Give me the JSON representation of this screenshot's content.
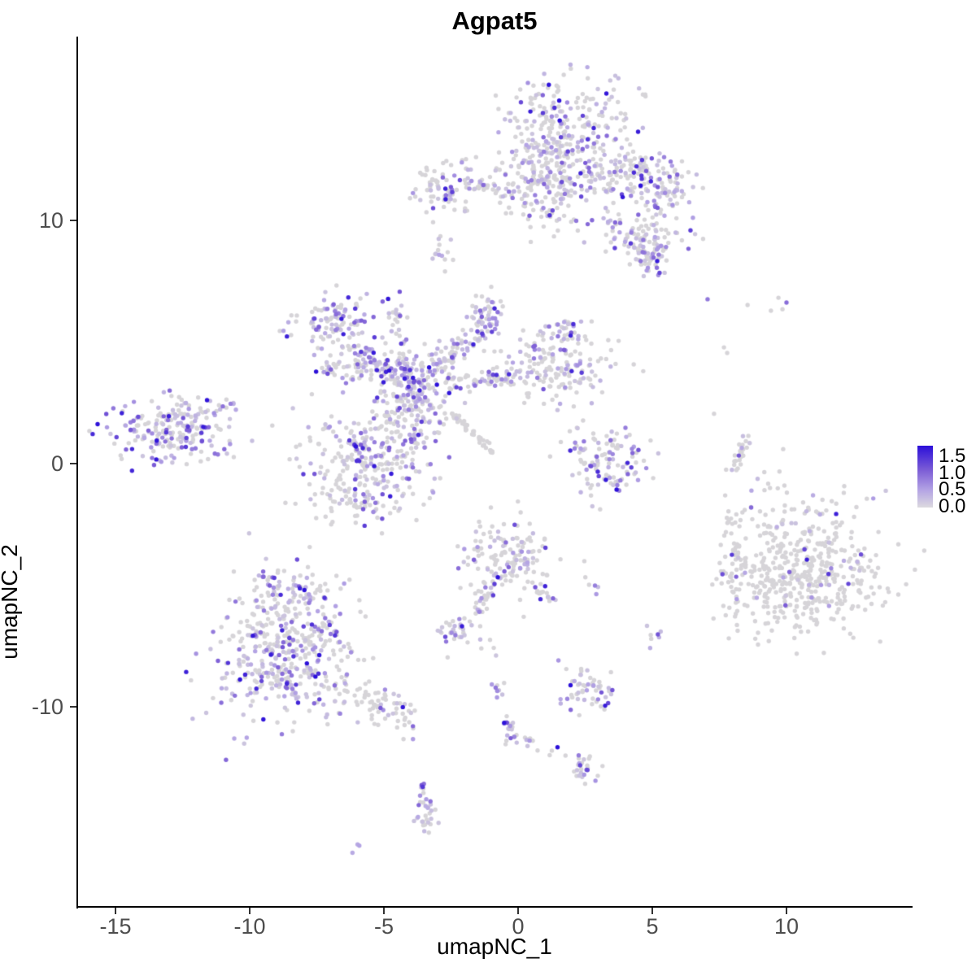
{
  "title": "Agpat5",
  "axes": {
    "x": {
      "label": "umapNC_1",
      "ticks": [
        -15,
        -10,
        -5,
        0,
        5,
        10
      ],
      "range": [
        -16.4,
        14.6
      ]
    },
    "y": {
      "label": "umapNC_2",
      "ticks": [
        10,
        0,
        -10
      ],
      "range": [
        -18.2,
        17.6
      ]
    }
  },
  "legend": {
    "labels": [
      "1.5",
      "1.0",
      "0.5",
      "0.0"
    ],
    "min": 0.0,
    "max": 1.5,
    "gradient_stops": [
      "#2b0fd9",
      "#7d5ed6",
      "#b4a4e4",
      "#dcdadf"
    ]
  },
  "colors": {
    "zero_expression": "#d6d4d8",
    "ramp": [
      [
        "0",
        "#d8d6da"
      ],
      [
        "0.35",
        "#b4a4e4"
      ],
      [
        "0.7",
        "#7d5ed6"
      ],
      [
        "1",
        "#2b0fd9"
      ]
    ],
    "axis": "#000000",
    "tick_text": "#4d4d4d"
  },
  "chart_data": {
    "type": "scatter",
    "title": "Agpat5",
    "xlabel": "umapNC_1",
    "ylabel": "umapNC_2",
    "xlim": [
      -16.4,
      14.6
    ],
    "ylim": [
      -18.2,
      17.6
    ],
    "grid": false,
    "legend_position": "right",
    "value_range": [
      0.0,
      1.5
    ],
    "point_radius_px": 2.7,
    "seed": 1337,
    "clusters": [
      {
        "name": "top-main",
        "kind": "blob",
        "cx": 1.91,
        "cy": 13.38,
        "sdx": 1.36,
        "sdy": 1.4,
        "n": 330,
        "frac": 0.35
      },
      {
        "name": "top-lower-left",
        "kind": "blob",
        "cx": 0.94,
        "cy": 11.71,
        "sdx": 0.67,
        "sdy": 1.07,
        "n": 140,
        "frac": 0.3
      },
      {
        "name": "top-right-arm",
        "kind": "strand",
        "x1": 2.97,
        "y1": 11.87,
        "x2": 5.85,
        "y2": 11.71,
        "sd": 0.5,
        "n": 120,
        "frac": 0.4
      },
      {
        "name": "top-right-hook",
        "kind": "blob",
        "cx": 5.39,
        "cy": 11.04,
        "sdx": 0.61,
        "sdy": 0.47,
        "n": 50,
        "frac": 0.4
      },
      {
        "name": "top-lower-lobe",
        "kind": "blob",
        "cx": 4.7,
        "cy": 9.36,
        "sdx": 0.85,
        "sdy": 0.54,
        "n": 100,
        "frac": 0.45
      },
      {
        "name": "top-lower-tip",
        "kind": "blob",
        "cx": 4.79,
        "cy": 8.36,
        "sdx": 0.42,
        "sdy": 0.33,
        "n": 35,
        "frac": 0.5
      },
      {
        "name": "top-left-clump",
        "kind": "blob",
        "cx": -2.58,
        "cy": 11.3,
        "sdx": 0.52,
        "sdy": 0.57,
        "n": 75,
        "frac": 0.35
      },
      {
        "name": "top-left-strand",
        "kind": "strand",
        "x1": -1.97,
        "y1": 11.44,
        "x2": 0.55,
        "y2": 10.94,
        "sd": 0.2,
        "n": 35,
        "frac": 0.45
      },
      {
        "name": "top-left-outliers",
        "kind": "blob",
        "cx": -3.7,
        "cy": 11.04,
        "sdx": 0.24,
        "sdy": 0.17,
        "n": 6,
        "frac": 0.3
      },
      {
        "name": "clump-above-neck",
        "kind": "blob",
        "cx": -2.79,
        "cy": 8.63,
        "sdx": 0.21,
        "sdy": 0.37,
        "n": 14,
        "frac": 0.4
      },
      {
        "name": "neck-strand",
        "kind": "strand",
        "x1": -4.55,
        "y1": 7.09,
        "x2": -4.36,
        "y2": 4.75,
        "sd": 0.15,
        "n": 26,
        "frac": 0.5
      },
      {
        "name": "central-upperleft-lobe",
        "kind": "blob",
        "cx": -6.73,
        "cy": 5.75,
        "sdx": 0.79,
        "sdy": 0.57,
        "n": 110,
        "frac": 0.5
      },
      {
        "name": "central-ul-arm",
        "kind": "strand",
        "x1": -6.12,
        "y1": 4.75,
        "x2": -4.24,
        "y2": 3.41,
        "sd": 0.3,
        "n": 80,
        "frac": 0.45
      },
      {
        "name": "central-left-band",
        "kind": "strand",
        "x1": -7.48,
        "y1": 4.01,
        "x2": -5.21,
        "y2": 3.75,
        "sd": 0.25,
        "n": 50,
        "frac": 0.4
      },
      {
        "name": "central-knot",
        "kind": "blob",
        "cx": -4.0,
        "cy": 2.84,
        "sdx": 0.73,
        "sdy": 0.87,
        "n": 190,
        "frac": 0.5
      },
      {
        "name": "central-knot-top",
        "kind": "strand",
        "x1": -4.39,
        "y1": 4.41,
        "x2": -4.09,
        "y2": 3.51,
        "sd": 0.15,
        "n": 30,
        "frac": 0.5
      },
      {
        "name": "central-arm-upright",
        "kind": "strand",
        "x1": -3.33,
        "y1": 3.61,
        "x2": -1.03,
        "y2": 5.95,
        "sd": 0.25,
        "n": 80,
        "frac": 0.4
      },
      {
        "name": "central-top-clump",
        "kind": "blob",
        "cx": -1.12,
        "cy": 6.19,
        "sdx": 0.36,
        "sdy": 0.4,
        "n": 40,
        "frac": 0.45
      },
      {
        "name": "central-right-lobe",
        "kind": "blob",
        "cx": 1.39,
        "cy": 3.95,
        "sdx": 1.15,
        "sdy": 0.74,
        "n": 170,
        "frac": 0.35
      },
      {
        "name": "central-right-top",
        "kind": "blob",
        "cx": 1.82,
        "cy": 5.52,
        "sdx": 0.36,
        "sdy": 0.33,
        "n": 25,
        "frac": 0.4
      },
      {
        "name": "central-mid-arm",
        "kind": "strand",
        "x1": -2.7,
        "y1": 3.34,
        "x2": 0.09,
        "y2": 3.61,
        "sd": 0.25,
        "n": 60,
        "frac": 0.4
      },
      {
        "name": "central-lowerleft-lobe",
        "kind": "blob",
        "cx": -5.67,
        "cy": 0.23,
        "sdx": 1.27,
        "sdy": 1.1,
        "n": 270,
        "frac": 0.45
      },
      {
        "name": "central-lowerleft-tail",
        "kind": "blob",
        "cx": -5.91,
        "cy": -1.61,
        "sdx": 0.73,
        "sdy": 0.4,
        "n": 55,
        "frac": 0.4
      },
      {
        "name": "grey-diagonal-strand",
        "kind": "strand",
        "x1": -2.45,
        "y1": 2.07,
        "x2": -0.88,
        "y2": 0.4,
        "sd": 0.08,
        "n": 45,
        "frac": 0.04
      },
      {
        "name": "left-cluster",
        "kind": "blob",
        "cx": -13.03,
        "cy": 1.34,
        "sdx": 1.09,
        "sdy": 0.7,
        "n": 210,
        "frac": 0.55
      },
      {
        "name": "left-cluster-tail",
        "kind": "strand",
        "x1": -11.79,
        "y1": 1.94,
        "x2": -10.52,
        "y2": 2.78,
        "sd": 0.12,
        "n": 12,
        "frac": 0.5
      },
      {
        "name": "bottomleft-main",
        "kind": "blob",
        "cx": -8.64,
        "cy": -7.63,
        "sdx": 1.27,
        "sdy": 1.4,
        "n": 430,
        "frac": 0.45
      },
      {
        "name": "bottomleft-top",
        "kind": "blob",
        "cx": -8.33,
        "cy": -5.25,
        "sdx": 0.73,
        "sdy": 0.47,
        "n": 60,
        "frac": 0.45
      },
      {
        "name": "bottomleft-tail",
        "kind": "strand",
        "x1": -6.58,
        "y1": -9.2,
        "x2": -4.0,
        "y2": -10.43,
        "sd": 0.4,
        "n": 75,
        "frac": 0.3
      },
      {
        "name": "right-main",
        "kind": "blob",
        "cx": 10.55,
        "cy": -4.35,
        "sdx": 1.58,
        "sdy": 1.47,
        "n": 500,
        "frac": 0.07
      },
      {
        "name": "right-appendage",
        "kind": "blob",
        "cx": 8.06,
        "cy": -4.58,
        "sdx": 0.3,
        "sdy": 0.74,
        "n": 35,
        "frac": 0.15
      },
      {
        "name": "right-small-top",
        "kind": "blob",
        "cx": 8.03,
        "cy": -2.27,
        "sdx": 0.21,
        "sdy": 0.23,
        "n": 8,
        "frac": 0.1
      },
      {
        "name": "mid-cluster",
        "kind": "blob",
        "cx": -0.36,
        "cy": -3.75,
        "sdx": 0.82,
        "sdy": 0.9,
        "n": 150,
        "frac": 0.3
      },
      {
        "name": "mid-strand",
        "kind": "strand",
        "x1": -1.03,
        "y1": -4.95,
        "x2": -1.55,
        "y2": -6.29,
        "sd": 0.12,
        "n": 22,
        "frac": 0.5
      },
      {
        "name": "mid-arm",
        "kind": "strand",
        "x1": 0.45,
        "y1": -4.95,
        "x2": 1.3,
        "y2": -5.75,
        "sd": 0.12,
        "n": 16,
        "frac": 0.3
      },
      {
        "name": "small-dense-clump",
        "kind": "blob",
        "cx": -2.42,
        "cy": -6.92,
        "sdx": 0.39,
        "sdy": 0.3,
        "n": 32,
        "frac": 0.55
      },
      {
        "name": "dots-below-clump",
        "kind": "blob",
        "cx": -1.21,
        "cy": -7.56,
        "sdx": 0.2,
        "sdy": 0.15,
        "n": 5,
        "frac": 0.3
      },
      {
        "name": "rightcenter-strand",
        "kind": "strand",
        "x1": 8.55,
        "y1": 1.07,
        "x2": 7.94,
        "y2": -0.33,
        "sd": 0.1,
        "n": 26,
        "frac": 0.2
      },
      {
        "name": "rightcenter-cluster",
        "kind": "blob",
        "cx": 3.36,
        "cy": 0.17,
        "sdx": 0.82,
        "sdy": 0.8,
        "n": 95,
        "frac": 0.35
      },
      {
        "name": "rightcenter-bottom-arc",
        "kind": "strand",
        "x1": 2.09,
        "y1": 0.74,
        "x2": 3.79,
        "y2": -1.1,
        "sd": 0.15,
        "n": 18,
        "frac": 0.7
      },
      {
        "name": "small-cluster-a",
        "kind": "blob",
        "cx": 2.58,
        "cy": -9.2,
        "sdx": 0.48,
        "sdy": 0.47,
        "n": 55,
        "frac": 0.5
      },
      {
        "name": "purple-clump",
        "kind": "blob",
        "cx": -0.88,
        "cy": -9.23,
        "sdx": 0.18,
        "sdy": 0.2,
        "n": 9,
        "frac": 0.85
      },
      {
        "name": "chain-strand",
        "kind": "strand",
        "x1": -0.45,
        "y1": -10.3,
        "x2": -0.09,
        "y2": -11.71,
        "sd": 0.12,
        "n": 22,
        "frac": 0.55
      },
      {
        "name": "chain-side-clump",
        "kind": "blob",
        "cx": 0.45,
        "cy": -11.47,
        "sdx": 0.15,
        "sdy": 0.17,
        "n": 7,
        "frac": 0.6
      },
      {
        "name": "chain-side-dots",
        "kind": "blob",
        "cx": 1.06,
        "cy": -11.87,
        "sdx": 0.25,
        "sdy": 0.18,
        "n": 4,
        "frac": 0.2
      },
      {
        "name": "small-cluster-b",
        "kind": "blob",
        "cx": 2.45,
        "cy": -12.44,
        "sdx": 0.36,
        "sdy": 0.33,
        "n": 28,
        "frac": 0.5
      },
      {
        "name": "bottom-arc-strand",
        "kind": "strand",
        "x1": -3.61,
        "y1": -13.24,
        "x2": -3.24,
        "y2": -14.38,
        "sd": 0.12,
        "n": 18,
        "frac": 0.5
      },
      {
        "name": "bottom-arc-clump",
        "kind": "blob",
        "cx": -3.33,
        "cy": -14.72,
        "sdx": 0.24,
        "sdy": 0.3,
        "n": 16,
        "frac": 0.55
      },
      {
        "name": "isolated-dot",
        "kind": "blob",
        "cx": -5.97,
        "cy": -15.82,
        "sdx": 0.08,
        "sdy": 0.08,
        "n": 3,
        "frac": 0.9
      },
      {
        "name": "small-pair",
        "kind": "blob",
        "cx": 5.09,
        "cy": -7.12,
        "sdx": 0.2,
        "sdy": 0.23,
        "n": 7,
        "frac": 0.7
      },
      {
        "name": "mid-right-dots",
        "kind": "blob",
        "cx": 2.85,
        "cy": -5.02,
        "sdx": 0.12,
        "sdy": 0.12,
        "n": 4,
        "frac": 0.5
      }
    ],
    "singles_grey": [
      [
        8.55,
        6.52
      ],
      [
        9.7,
        6.82
      ],
      [
        9.85,
        6.35
      ],
      [
        9.42,
        6.29
      ],
      [
        7.67,
        4.78
      ],
      [
        7.79,
        4.55
      ],
      [
        7.3,
        2.05
      ]
    ],
    "singles_purple": [
      [
        7.06,
        6.76
      ],
      [
        10.0,
        6.62
      ]
    ],
    "highlights": [
      [
        -11.73,
        1.51
      ],
      [
        -13.48,
        0.17
      ],
      [
        -6.58,
        5.95
      ],
      [
        -3.67,
        3.01
      ],
      [
        3.27,
        -0.67
      ],
      [
        3.67,
        -1.07
      ],
      [
        -2.09,
        -6.69
      ],
      [
        1.55,
        14.11
      ],
      [
        11.85,
        -2.07
      ],
      [
        10.76,
        -3.95
      ],
      [
        -9.21,
        -7.86
      ],
      [
        -7.55,
        -8.76
      ],
      [
        -2.7,
        10.87
      ]
    ]
  }
}
